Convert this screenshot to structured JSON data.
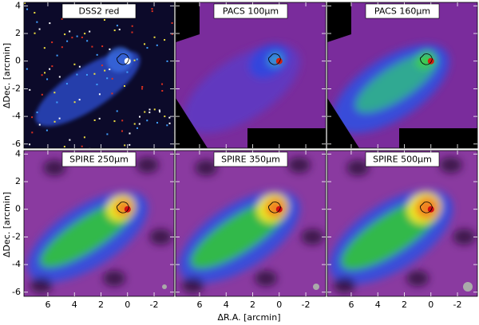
{
  "figure": {
    "panels": [
      {
        "label": "DSS2 red"
      },
      {
        "label": "PACS 100μm"
      },
      {
        "label": "PACS 160μm"
      },
      {
        "label": "SPIRE 250μm"
      },
      {
        "label": "SPIRE 350μm"
      },
      {
        "label": "SPIRE 500μm"
      }
    ],
    "xlabel": "ΔR.A. [arcmin]",
    "ylabel": "ΔDec. [arcmin]",
    "xlim": [
      7.8,
      -3.5
    ],
    "ylim": [
      -6.3,
      4.25
    ],
    "xticks": [
      6,
      4,
      2,
      0,
      -2
    ],
    "yticks": [
      4,
      2,
      0,
      -2,
      -4,
      -6
    ]
  }
}
